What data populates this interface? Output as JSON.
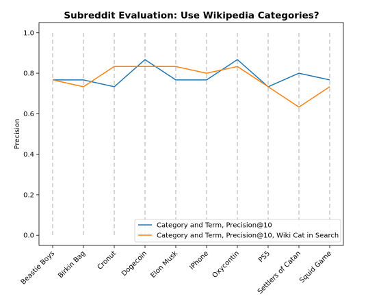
{
  "chart_data": {
    "type": "line",
    "title": "Subreddit Evaluation: Use Wikipedia Categories?",
    "xlabel": "",
    "ylabel": "Precision",
    "categories": [
      "Beastie Boys",
      "Birkin Bag",
      "Cronut",
      "Dogecoin",
      "Elon Musk",
      "IPhone",
      "Oxycontin",
      "PS5",
      "Settlers of Catan",
      "Squid Game"
    ],
    "ylim": [
      -0.05,
      1.05
    ],
    "yticks": [
      0.0,
      0.2,
      0.4,
      0.6,
      0.8,
      1.0
    ],
    "ytick_labels": [
      "0.0",
      "0.2",
      "0.4",
      "0.6",
      "0.8",
      "1.0"
    ],
    "grid": "vertical dashed lines at each category",
    "legend_position": "lower-right",
    "series": [
      {
        "name": "Category and Term, Precision@10",
        "color": "#1f77b4",
        "values": [
          0.767,
          0.767,
          0.733,
          0.867,
          0.767,
          0.767,
          0.867,
          0.733,
          0.8,
          0.767
        ]
      },
      {
        "name": "Category and Term, Precision@10, Wiki Cat in Search",
        "color": "#ff7f0e",
        "values": [
          0.767,
          0.733,
          0.833,
          0.833,
          0.833,
          0.8,
          0.833,
          0.733,
          0.633,
          0.733
        ]
      }
    ]
  }
}
